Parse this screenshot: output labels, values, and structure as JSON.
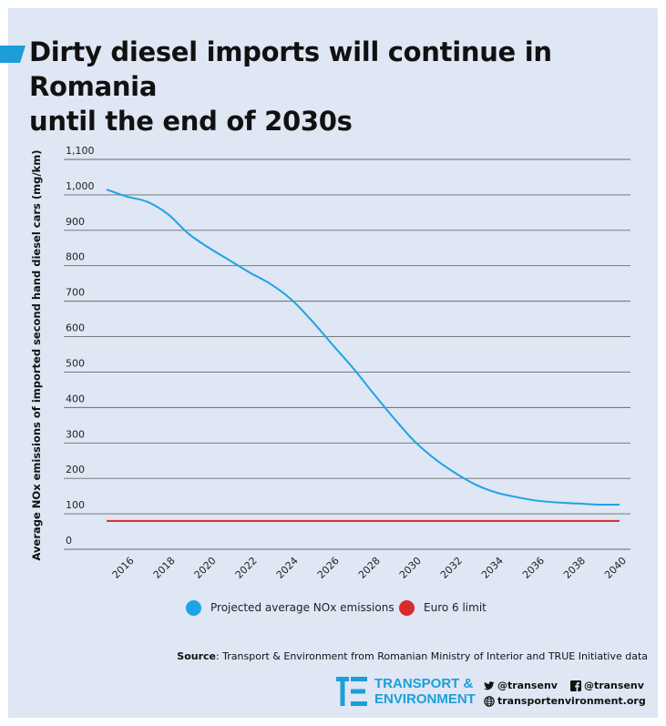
{
  "title_lines": [
    "Dirty diesel imports will continue in Romania",
    "until the end of 2030s"
  ],
  "colors": {
    "background": "#dfe6f4",
    "accent": "#1c9fd8",
    "projection": "#1ea3e6",
    "limit": "#d92b2b",
    "grid": "#6b6b6b"
  },
  "chart_data": {
    "type": "line",
    "ylabel": "Average NOx emissions of imported second hand diesel cars (mg/km)",
    "xlabel": "",
    "ylim": [
      0,
      1100
    ],
    "yticks": [
      0,
      100,
      200,
      300,
      400,
      500,
      600,
      700,
      800,
      900,
      1000,
      1100
    ],
    "ytick_labels": [
      "0",
      "100",
      "200",
      "300",
      "400",
      "500",
      "600",
      "700",
      "800",
      "900",
      "1,000",
      "1,100"
    ],
    "xlim": [
      2015,
      2040
    ],
    "xticks": [
      "2016",
      "2018",
      "2020",
      "2022",
      "2024",
      "2026",
      "2028",
      "2030",
      "2032",
      "2034",
      "2036",
      "2038",
      "2040"
    ],
    "grid": "horizontal",
    "legend_position": "bottom",
    "series": [
      {
        "name": "Projected average NOx emissions",
        "color": "#1ea3e6",
        "x": [
          2015,
          2016,
          2017,
          2018,
          2019,
          2020,
          2021,
          2022,
          2023,
          2024,
          2025,
          2026,
          2027,
          2028,
          2029,
          2030,
          2031,
          2032,
          2033,
          2034,
          2035,
          2036,
          2037,
          2038,
          2039,
          2040
        ],
        "values": [
          1015,
          995,
          980,
          945,
          890,
          850,
          815,
          780,
          748,
          705,
          645,
          578,
          512,
          440,
          370,
          305,
          255,
          215,
          182,
          160,
          147,
          137,
          132,
          129,
          126,
          126
        ]
      },
      {
        "name": "Euro 6 limit",
        "color": "#d92b2b",
        "x": [
          2015,
          2040
        ],
        "values": [
          80,
          80
        ]
      }
    ]
  },
  "source": {
    "label": "Source",
    "text": ": Transport & Environment from Romanian Ministry of Interior and TRUE Initiative data"
  },
  "brand": {
    "line1": "TRANSPORT &",
    "line2": "ENVIRONMENT"
  },
  "social": {
    "twitter": "@transenv",
    "facebook": "@transenv",
    "website": "transportenvironment.org"
  }
}
